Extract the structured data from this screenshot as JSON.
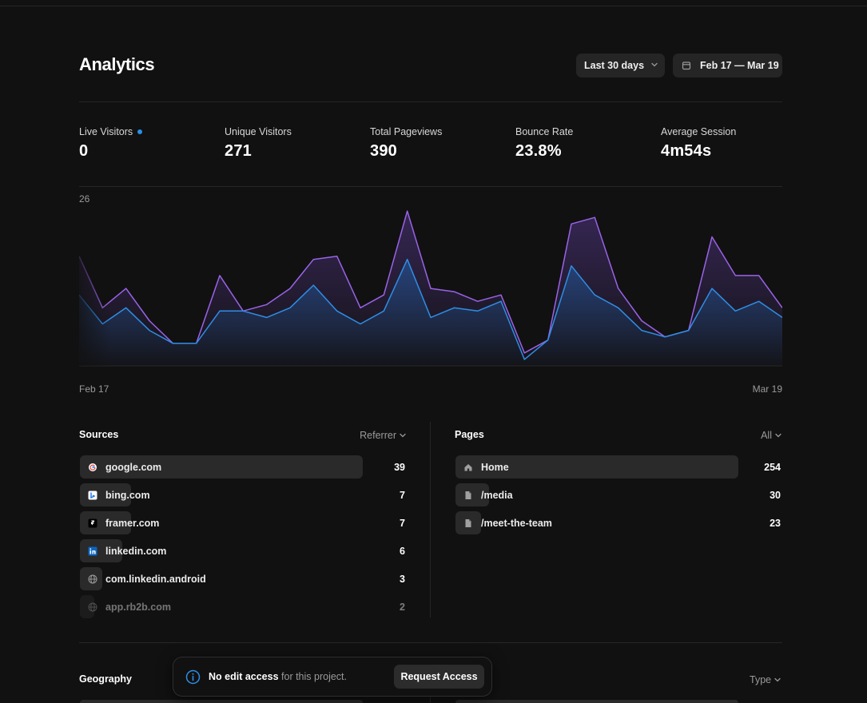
{
  "header": {
    "title": "Analytics",
    "range_label": "Last 30 days",
    "date_range": "Feb 17 — Mar 19"
  },
  "stats": [
    {
      "label": "Live Visitors",
      "value": "0"
    },
    {
      "label": "Unique Visitors",
      "value": "271"
    },
    {
      "label": "Total Pageviews",
      "value": "390"
    },
    {
      "label": "Bounce Rate",
      "value": "23.8%"
    },
    {
      "label": "Average Session",
      "value": "4m54s"
    }
  ],
  "colors": {
    "pageviews": "#9a63e8",
    "visitors": "#2f8ee6",
    "live_dot": "#2b8fe8"
  },
  "chart_data": {
    "type": "area",
    "title": "",
    "ylim": [
      0,
      26
    ],
    "y_max_label": "26",
    "x_start_label": "Feb 17",
    "x_end_label": "Mar 19",
    "x": [
      1,
      2,
      3,
      4,
      5,
      6,
      7,
      8,
      9,
      10,
      11,
      12,
      13,
      14,
      15,
      16,
      17,
      18,
      19,
      20,
      21,
      22,
      23,
      24,
      25,
      26,
      27,
      28,
      29,
      30,
      31
    ],
    "series": [
      {
        "name": "Pageviews",
        "values": [
          17,
          9,
          12,
          7,
          3.5,
          3.5,
          14,
          8.5,
          9.5,
          12,
          16.5,
          17,
          9,
          11,
          24,
          12,
          11.5,
          10,
          11,
          2,
          4,
          22,
          23,
          12,
          7,
          4.5,
          5.5,
          20,
          14,
          14,
          9
        ]
      },
      {
        "name": "Visitors",
        "values": [
          11,
          6.5,
          9,
          5.5,
          3.5,
          3.5,
          8.5,
          8.5,
          7.5,
          9,
          12.5,
          8.5,
          6.5,
          8.5,
          16.5,
          7.5,
          9,
          8.5,
          10,
          1,
          4,
          15.5,
          11,
          9,
          5.5,
          4.5,
          5.5,
          12,
          8.5,
          10,
          7.5
        ]
      }
    ]
  },
  "sources": {
    "title": "Sources",
    "filter": "Referrer",
    "items": [
      {
        "name": "google.com",
        "count": "39",
        "icon": "google-icon",
        "pct": 1.0
      },
      {
        "name": "bing.com",
        "count": "7",
        "icon": "bing-icon",
        "pct": 0.18
      },
      {
        "name": "framer.com",
        "count": "7",
        "icon": "framer-icon",
        "pct": 0.18
      },
      {
        "name": "linkedin.com",
        "count": "6",
        "icon": "linkedin-icon",
        "pct": 0.15
      },
      {
        "name": "com.linkedin.android",
        "count": "3",
        "icon": "globe-icon",
        "pct": 0.08
      },
      {
        "name": "app.rb2b.com",
        "count": "2",
        "icon": "globe-icon",
        "pct": 0.05
      }
    ]
  },
  "pages": {
    "title": "Pages",
    "filter": "All",
    "items": [
      {
        "name": "Home",
        "count": "254",
        "icon": "home-icon",
        "pct": 1.0
      },
      {
        "name": "/media",
        "count": "30",
        "icon": "file-icon",
        "pct": 0.12
      },
      {
        "name": "/meet-the-team",
        "count": "23",
        "icon": "file-icon",
        "pct": 0.09
      }
    ]
  },
  "geography": {
    "title": "Geography",
    "filter": "Type"
  },
  "toast": {
    "bold": "No edit access",
    "rest": " for this project.",
    "button": "Request Access"
  }
}
